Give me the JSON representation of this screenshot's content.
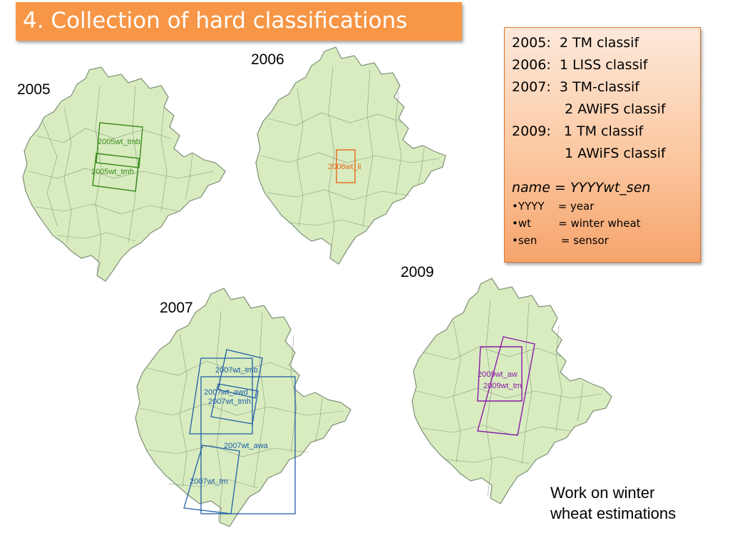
{
  "title": "4. Collection of hard classifications",
  "info_box": {
    "lines": [
      "2005:  2 TM classif",
      "2006:  1 LISS classif",
      "2007:  3 TM-classif"
    ],
    "line_indent_2007": "2 AWiFS classif",
    "line_2009": "2009:   1 TM classif",
    "line_indent_2009": "1 AWiFS classif",
    "formula": "name = YYYYwt_sen",
    "bullets": [
      "•YYYY    = year",
      "•wt        = winter wheat",
      "•sen       = sensor"
    ]
  },
  "maps": {
    "y2005": {
      "year": "2005",
      "scenes": [
        "2005wt_tmb",
        "2005wt_tmh"
      ],
      "color": "#3a8a1a"
    },
    "y2006": {
      "year": "2006",
      "scenes": [
        "2006wt_li"
      ],
      "color": "#e8691a"
    },
    "y2007": {
      "year": "2007",
      "scenes": [
        "2007wt_tmb",
        "2007wt_awd",
        "2007wt_tmh",
        "2007wt_awa",
        "2007wt_tm"
      ],
      "color": "#1f5fa8"
    },
    "y2009": {
      "year": "2009",
      "scenes": [
        "2009wt_aw",
        "2009wt_tm"
      ],
      "color": "#8a1aa8"
    }
  },
  "colors": {
    "region_fill": "#d8ecc0",
    "region_stroke": "#7f8f78",
    "title_bg": "#f79646"
  },
  "footer": {
    "line1": "Work on winter",
    "line2": "wheat estimations"
  }
}
